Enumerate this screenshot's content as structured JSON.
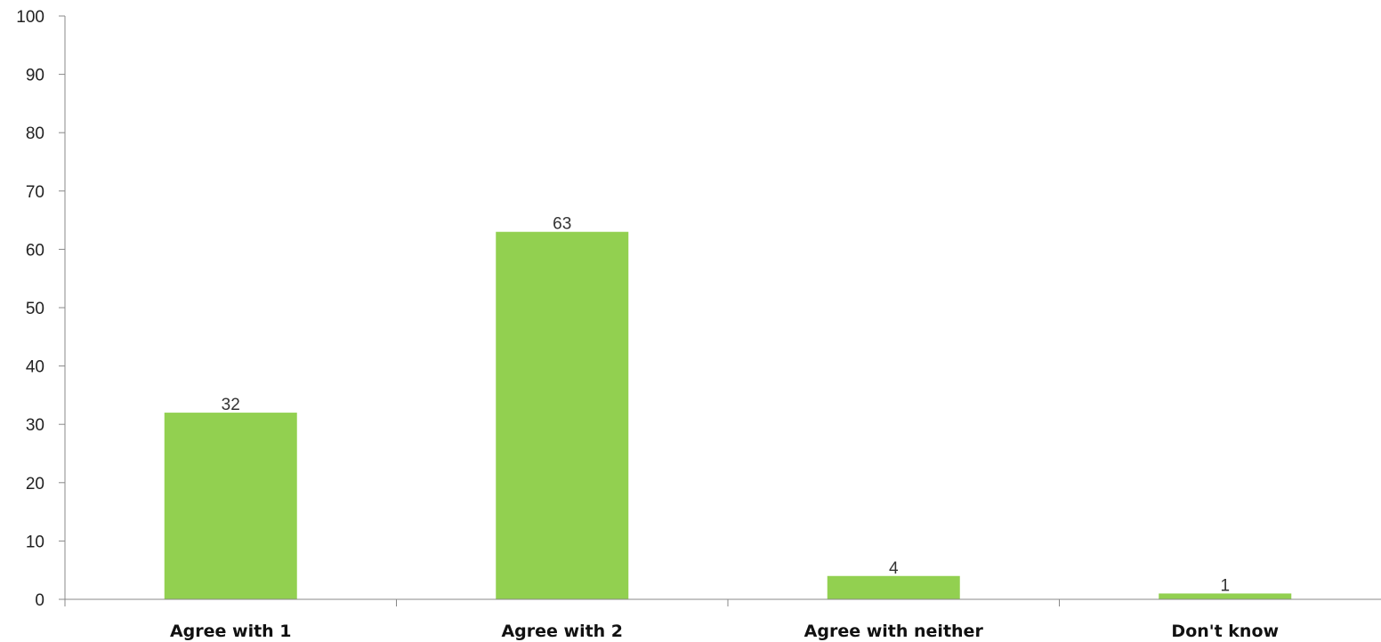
{
  "chart_data": {
    "type": "bar",
    "categories": [
      "Agree with 1",
      "Agree with 2",
      "Agree with neither",
      "Don't know"
    ],
    "values": [
      32,
      63,
      4,
      1
    ],
    "data_labels": [
      "32",
      "63",
      "4",
      "1"
    ],
    "yticks": [
      "0",
      "10",
      "20",
      "30",
      "40",
      "50",
      "60",
      "70",
      "80",
      "90",
      "100"
    ],
    "ylim": [
      0,
      100
    ],
    "grid": false,
    "legend": "none",
    "bar_color": "#92d050",
    "axis_color": "#888888"
  }
}
